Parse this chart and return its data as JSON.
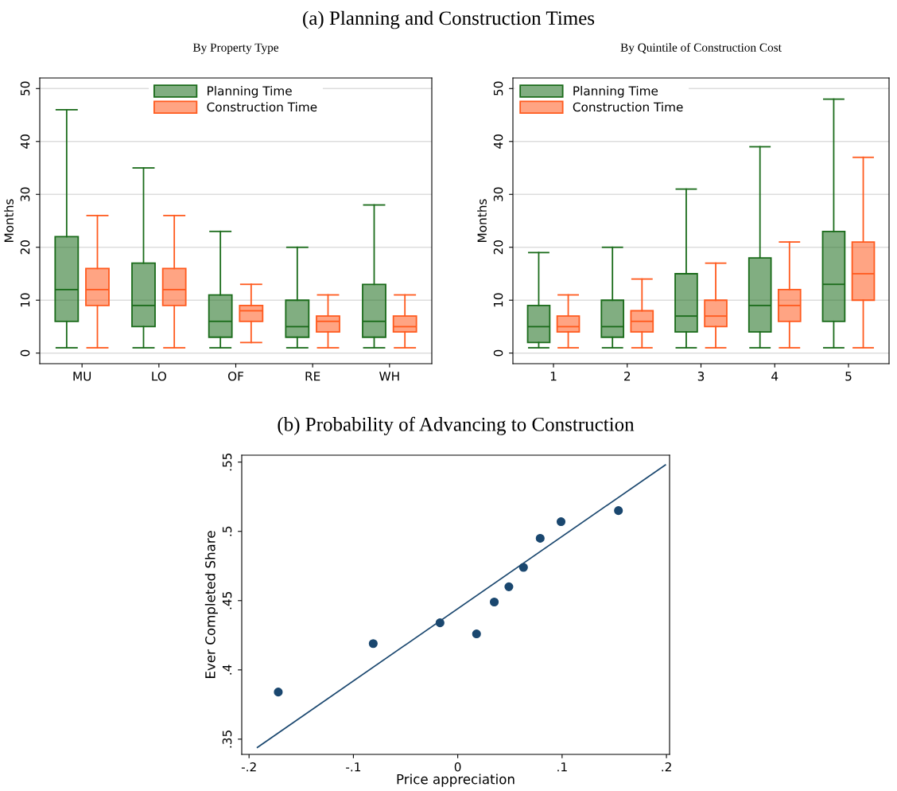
{
  "chart_data": [
    {
      "type": "box",
      "title": "(a) Planning and Construction Times",
      "subtitle": "By Property Type",
      "ylabel": "Months",
      "categories": [
        "MU",
        "LO",
        "OF",
        "RE",
        "WH"
      ],
      "ylim": [
        -2,
        52
      ],
      "yticks": [
        0,
        10,
        20,
        30,
        40,
        50
      ],
      "grid": "y",
      "legend": "top",
      "series": [
        {
          "name": "Planning Time",
          "color": "#1a6b1a",
          "boxes": [
            {
              "low": 1,
              "q1": 6,
              "median": 12,
              "q3": 22,
              "high": 46
            },
            {
              "low": 1,
              "q1": 5,
              "median": 9,
              "q3": 17,
              "high": 35
            },
            {
              "low": 1,
              "q1": 3,
              "median": 6,
              "q3": 11,
              "high": 23
            },
            {
              "low": 1,
              "q1": 3,
              "median": 5,
              "q3": 10,
              "high": 20
            },
            {
              "low": 1,
              "q1": 3,
              "median": 6,
              "q3": 13,
              "high": 28
            }
          ]
        },
        {
          "name": "Construction Time",
          "color": "#ff5a1e",
          "boxes": [
            {
              "low": 1,
              "q1": 9,
              "median": 12,
              "q3": 16,
              "high": 26
            },
            {
              "low": 1,
              "q1": 9,
              "median": 12,
              "q3": 16,
              "high": 26
            },
            {
              "low": 2,
              "q1": 6,
              "median": 8,
              "q3": 9,
              "high": 13
            },
            {
              "low": 1,
              "q1": 4,
              "median": 6,
              "q3": 7,
              "high": 11
            },
            {
              "low": 1,
              "q1": 4,
              "median": 5,
              "q3": 7,
              "high": 11
            }
          ]
        }
      ]
    },
    {
      "type": "box",
      "subtitle": "By Quintile of Construction Cost",
      "ylabel": "Months",
      "categories": [
        "1",
        "2",
        "3",
        "4",
        "5"
      ],
      "ylim": [
        -2,
        52
      ],
      "yticks": [
        0,
        10,
        20,
        30,
        40,
        50
      ],
      "grid": "y",
      "legend": "top left",
      "series": [
        {
          "name": "Planning Time",
          "color": "#1a6b1a",
          "boxes": [
            {
              "low": 1,
              "q1": 2,
              "median": 5,
              "q3": 9,
              "high": 19
            },
            {
              "low": 1,
              "q1": 3,
              "median": 5,
              "q3": 10,
              "high": 20
            },
            {
              "low": 1,
              "q1": 4,
              "median": 7,
              "q3": 15,
              "high": 31
            },
            {
              "low": 1,
              "q1": 4,
              "median": 9,
              "q3": 18,
              "high": 39
            },
            {
              "low": 1,
              "q1": 6,
              "median": 13,
              "q3": 23,
              "high": 48
            }
          ]
        },
        {
          "name": "Construction Time",
          "color": "#ff5a1e",
          "boxes": [
            {
              "low": 1,
              "q1": 4,
              "median": 5,
              "q3": 7,
              "high": 11
            },
            {
              "low": 1,
              "q1": 4,
              "median": 6,
              "q3": 8,
              "high": 14
            },
            {
              "low": 1,
              "q1": 5,
              "median": 7,
              "q3": 10,
              "high": 17
            },
            {
              "low": 1,
              "q1": 6,
              "median": 9,
              "q3": 12,
              "high": 21
            },
            {
              "low": 1,
              "q1": 10,
              "median": 15,
              "q3": 21,
              "high": 37
            }
          ]
        }
      ]
    },
    {
      "type": "scatter",
      "title": "(b) Probability of Advancing to Construction",
      "xlabel": "Price appreciation",
      "ylabel": "Ever Completed Share",
      "xlim": [
        -0.207,
        0.203
      ],
      "ylim": [
        0.339,
        0.555
      ],
      "xticks": [
        {
          "value": -0.2,
          "label": "-.2"
        },
        {
          "value": -0.1,
          "label": "-.1"
        },
        {
          "value": 0,
          "label": "0"
        },
        {
          "value": 0.1,
          "label": ".1"
        },
        {
          "value": 0.2,
          "label": ".2"
        }
      ],
      "yticks": [
        {
          "value": 0.35,
          "label": ".35"
        },
        {
          "value": 0.4,
          "label": ".4"
        },
        {
          "value": 0.45,
          "label": ".45"
        },
        {
          "value": 0.5,
          "label": ".5"
        },
        {
          "value": 0.55,
          "label": ".55"
        }
      ],
      "grid": false,
      "series": [
        {
          "type": "scatter",
          "marker": "circle",
          "color": "#1a476f",
          "x": [
            -0.172,
            -0.081,
            -0.017,
            0.018,
            0.035,
            0.049,
            0.063,
            0.079,
            0.099,
            0.154
          ],
          "values": [
            0.384,
            0.419,
            0.434,
            0.426,
            0.449,
            0.46,
            0.474,
            0.495,
            0.507,
            0.515
          ]
        },
        {
          "type": "line",
          "color": "#1a476f",
          "x": [
            -0.192,
            0.199
          ],
          "values": [
            0.344,
            0.548
          ]
        }
      ]
    }
  ]
}
